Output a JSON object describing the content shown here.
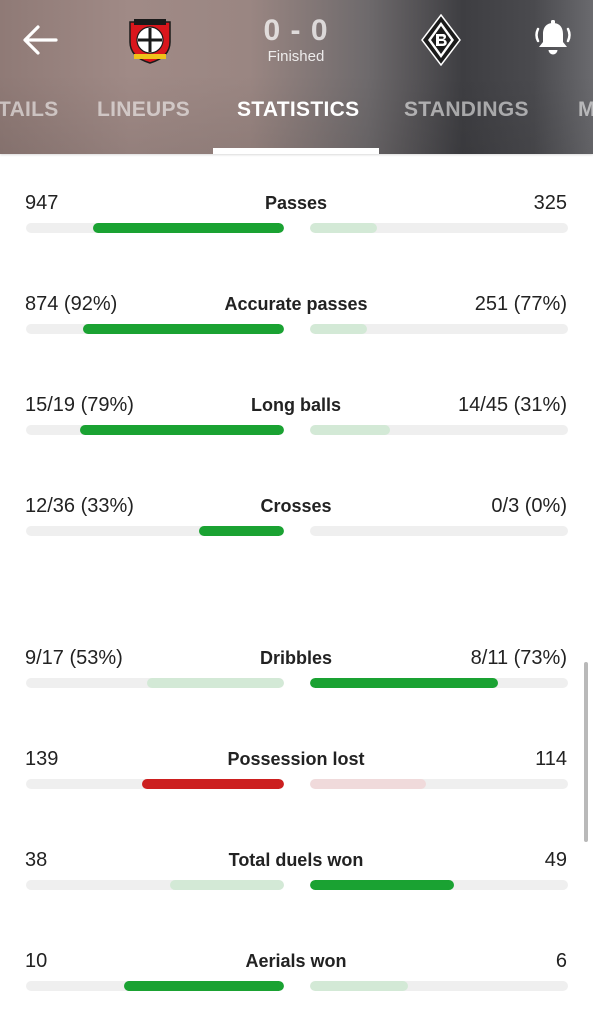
{
  "header": {
    "score": "0 - 0",
    "status": "Finished",
    "home_team_crest": "bayer-leverkusen-crest",
    "away_team_crest": "borussia-monchengladbach-crest",
    "back_icon": "arrow-left-icon",
    "notification_icon": "bell-icon"
  },
  "tabs": [
    {
      "label": "DETAILS",
      "visible_text": "TAILS",
      "active": false
    },
    {
      "label": "LINEUPS",
      "active": false
    },
    {
      "label": "STATISTICS",
      "active": true
    },
    {
      "label": "STANDINGS",
      "active": false
    },
    {
      "label": "M",
      "active": false
    }
  ],
  "colors": {
    "home_bar_strong": "#1aa232",
    "bar_light_green": "#d3e9d6",
    "bar_red": "#cc1f1f",
    "bar_light_red": "#f0dadb",
    "track": "#efefef"
  },
  "stats": [
    {
      "label": "Passes",
      "home": "947",
      "away": "325",
      "home_fraction": 0.74,
      "away_fraction": 0.26,
      "home_style": "strong-green",
      "away_style": "light-green"
    },
    {
      "label": "Accurate passes",
      "home": "874 (92%)",
      "away": "251 (77%)",
      "home_fraction": 0.78,
      "away_fraction": 0.22,
      "home_style": "strong-green",
      "away_style": "light-green"
    },
    {
      "label": "Long balls",
      "home": "15/19 (79%)",
      "away": "14/45 (31%)",
      "home_fraction": 0.79,
      "away_fraction": 0.31,
      "home_style": "strong-green",
      "away_style": "light-green"
    },
    {
      "label": "Crosses",
      "home": "12/36 (33%)",
      "away": "0/3 (0%)",
      "home_fraction": 0.33,
      "away_fraction": 0.0,
      "home_style": "strong-green",
      "away_style": "light-green"
    },
    {
      "label": "Dribbles",
      "home": "9/17 (53%)",
      "away": "8/11 (73%)",
      "home_fraction": 0.53,
      "away_fraction": 0.73,
      "home_style": "light-green",
      "away_style": "strong-green"
    },
    {
      "label": "Possession lost",
      "home": "139",
      "away": "114",
      "home_fraction": 0.55,
      "away_fraction": 0.45,
      "home_style": "strong-red",
      "away_style": "light-red"
    },
    {
      "label": "Total duels won",
      "home": "38",
      "away": "49",
      "home_fraction": 0.44,
      "away_fraction": 0.56,
      "home_style": "light-green",
      "away_style": "strong-green"
    },
    {
      "label": "Aerials won",
      "home": "10",
      "away": "6",
      "home_fraction": 0.62,
      "away_fraction": 0.38,
      "home_style": "strong-green",
      "away_style": "light-green"
    }
  ]
}
